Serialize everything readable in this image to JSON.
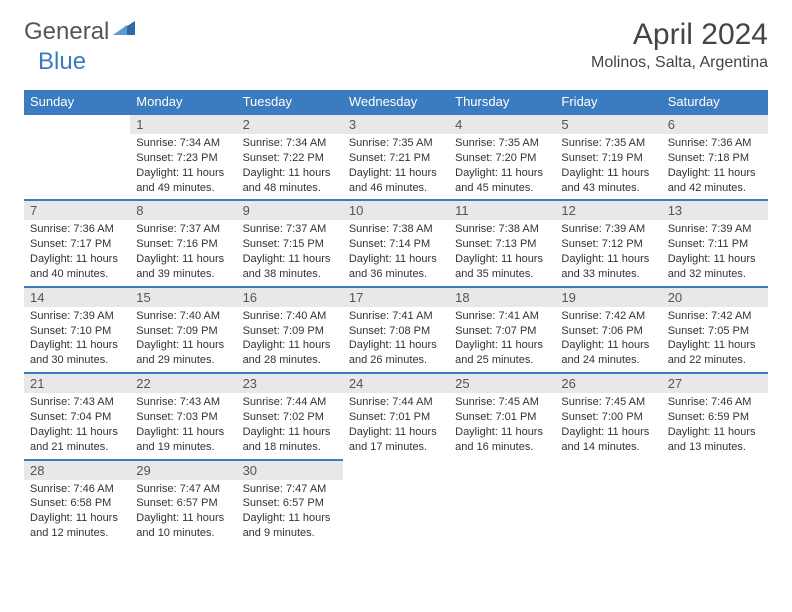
{
  "brand": {
    "part1": "General",
    "part2": "Blue"
  },
  "title": "April 2024",
  "location": "Molinos, Salta, Argentina",
  "colors": {
    "header_bg": "#3b7bbf",
    "header_text": "#ffffff",
    "daynum_bg": "#e8e8e8",
    "rule": "#3b7bbf",
    "text": "#333333"
  },
  "typography": {
    "base_fontsize_pt": 9,
    "title_fontsize_pt": 22,
    "location_fontsize_pt": 12
  },
  "weekdays": [
    "Sunday",
    "Monday",
    "Tuesday",
    "Wednesday",
    "Thursday",
    "Friday",
    "Saturday"
  ],
  "weeks": [
    [
      null,
      {
        "n": "1",
        "sr": "Sunrise: 7:34 AM",
        "ss": "Sunset: 7:23 PM",
        "d1": "Daylight: 11 hours",
        "d2": "and 49 minutes."
      },
      {
        "n": "2",
        "sr": "Sunrise: 7:34 AM",
        "ss": "Sunset: 7:22 PM",
        "d1": "Daylight: 11 hours",
        "d2": "and 48 minutes."
      },
      {
        "n": "3",
        "sr": "Sunrise: 7:35 AM",
        "ss": "Sunset: 7:21 PM",
        "d1": "Daylight: 11 hours",
        "d2": "and 46 minutes."
      },
      {
        "n": "4",
        "sr": "Sunrise: 7:35 AM",
        "ss": "Sunset: 7:20 PM",
        "d1": "Daylight: 11 hours",
        "d2": "and 45 minutes."
      },
      {
        "n": "5",
        "sr": "Sunrise: 7:35 AM",
        "ss": "Sunset: 7:19 PM",
        "d1": "Daylight: 11 hours",
        "d2": "and 43 minutes."
      },
      {
        "n": "6",
        "sr": "Sunrise: 7:36 AM",
        "ss": "Sunset: 7:18 PM",
        "d1": "Daylight: 11 hours",
        "d2": "and 42 minutes."
      }
    ],
    [
      {
        "n": "7",
        "sr": "Sunrise: 7:36 AM",
        "ss": "Sunset: 7:17 PM",
        "d1": "Daylight: 11 hours",
        "d2": "and 40 minutes."
      },
      {
        "n": "8",
        "sr": "Sunrise: 7:37 AM",
        "ss": "Sunset: 7:16 PM",
        "d1": "Daylight: 11 hours",
        "d2": "and 39 minutes."
      },
      {
        "n": "9",
        "sr": "Sunrise: 7:37 AM",
        "ss": "Sunset: 7:15 PM",
        "d1": "Daylight: 11 hours",
        "d2": "and 38 minutes."
      },
      {
        "n": "10",
        "sr": "Sunrise: 7:38 AM",
        "ss": "Sunset: 7:14 PM",
        "d1": "Daylight: 11 hours",
        "d2": "and 36 minutes."
      },
      {
        "n": "11",
        "sr": "Sunrise: 7:38 AM",
        "ss": "Sunset: 7:13 PM",
        "d1": "Daylight: 11 hours",
        "d2": "and 35 minutes."
      },
      {
        "n": "12",
        "sr": "Sunrise: 7:39 AM",
        "ss": "Sunset: 7:12 PM",
        "d1": "Daylight: 11 hours",
        "d2": "and 33 minutes."
      },
      {
        "n": "13",
        "sr": "Sunrise: 7:39 AM",
        "ss": "Sunset: 7:11 PM",
        "d1": "Daylight: 11 hours",
        "d2": "and 32 minutes."
      }
    ],
    [
      {
        "n": "14",
        "sr": "Sunrise: 7:39 AM",
        "ss": "Sunset: 7:10 PM",
        "d1": "Daylight: 11 hours",
        "d2": "and 30 minutes."
      },
      {
        "n": "15",
        "sr": "Sunrise: 7:40 AM",
        "ss": "Sunset: 7:09 PM",
        "d1": "Daylight: 11 hours",
        "d2": "and 29 minutes."
      },
      {
        "n": "16",
        "sr": "Sunrise: 7:40 AM",
        "ss": "Sunset: 7:09 PM",
        "d1": "Daylight: 11 hours",
        "d2": "and 28 minutes."
      },
      {
        "n": "17",
        "sr": "Sunrise: 7:41 AM",
        "ss": "Sunset: 7:08 PM",
        "d1": "Daylight: 11 hours",
        "d2": "and 26 minutes."
      },
      {
        "n": "18",
        "sr": "Sunrise: 7:41 AM",
        "ss": "Sunset: 7:07 PM",
        "d1": "Daylight: 11 hours",
        "d2": "and 25 minutes."
      },
      {
        "n": "19",
        "sr": "Sunrise: 7:42 AM",
        "ss": "Sunset: 7:06 PM",
        "d1": "Daylight: 11 hours",
        "d2": "and 24 minutes."
      },
      {
        "n": "20",
        "sr": "Sunrise: 7:42 AM",
        "ss": "Sunset: 7:05 PM",
        "d1": "Daylight: 11 hours",
        "d2": "and 22 minutes."
      }
    ],
    [
      {
        "n": "21",
        "sr": "Sunrise: 7:43 AM",
        "ss": "Sunset: 7:04 PM",
        "d1": "Daylight: 11 hours",
        "d2": "and 21 minutes."
      },
      {
        "n": "22",
        "sr": "Sunrise: 7:43 AM",
        "ss": "Sunset: 7:03 PM",
        "d1": "Daylight: 11 hours",
        "d2": "and 19 minutes."
      },
      {
        "n": "23",
        "sr": "Sunrise: 7:44 AM",
        "ss": "Sunset: 7:02 PM",
        "d1": "Daylight: 11 hours",
        "d2": "and 18 minutes."
      },
      {
        "n": "24",
        "sr": "Sunrise: 7:44 AM",
        "ss": "Sunset: 7:01 PM",
        "d1": "Daylight: 11 hours",
        "d2": "and 17 minutes."
      },
      {
        "n": "25",
        "sr": "Sunrise: 7:45 AM",
        "ss": "Sunset: 7:01 PM",
        "d1": "Daylight: 11 hours",
        "d2": "and 16 minutes."
      },
      {
        "n": "26",
        "sr": "Sunrise: 7:45 AM",
        "ss": "Sunset: 7:00 PM",
        "d1": "Daylight: 11 hours",
        "d2": "and 14 minutes."
      },
      {
        "n": "27",
        "sr": "Sunrise: 7:46 AM",
        "ss": "Sunset: 6:59 PM",
        "d1": "Daylight: 11 hours",
        "d2": "and 13 minutes."
      }
    ],
    [
      {
        "n": "28",
        "sr": "Sunrise: 7:46 AM",
        "ss": "Sunset: 6:58 PM",
        "d1": "Daylight: 11 hours",
        "d2": "and 12 minutes."
      },
      {
        "n": "29",
        "sr": "Sunrise: 7:47 AM",
        "ss": "Sunset: 6:57 PM",
        "d1": "Daylight: 11 hours",
        "d2": "and 10 minutes."
      },
      {
        "n": "30",
        "sr": "Sunrise: 7:47 AM",
        "ss": "Sunset: 6:57 PM",
        "d1": "Daylight: 11 hours",
        "d2": "and 9 minutes."
      },
      null,
      null,
      null,
      null
    ]
  ]
}
